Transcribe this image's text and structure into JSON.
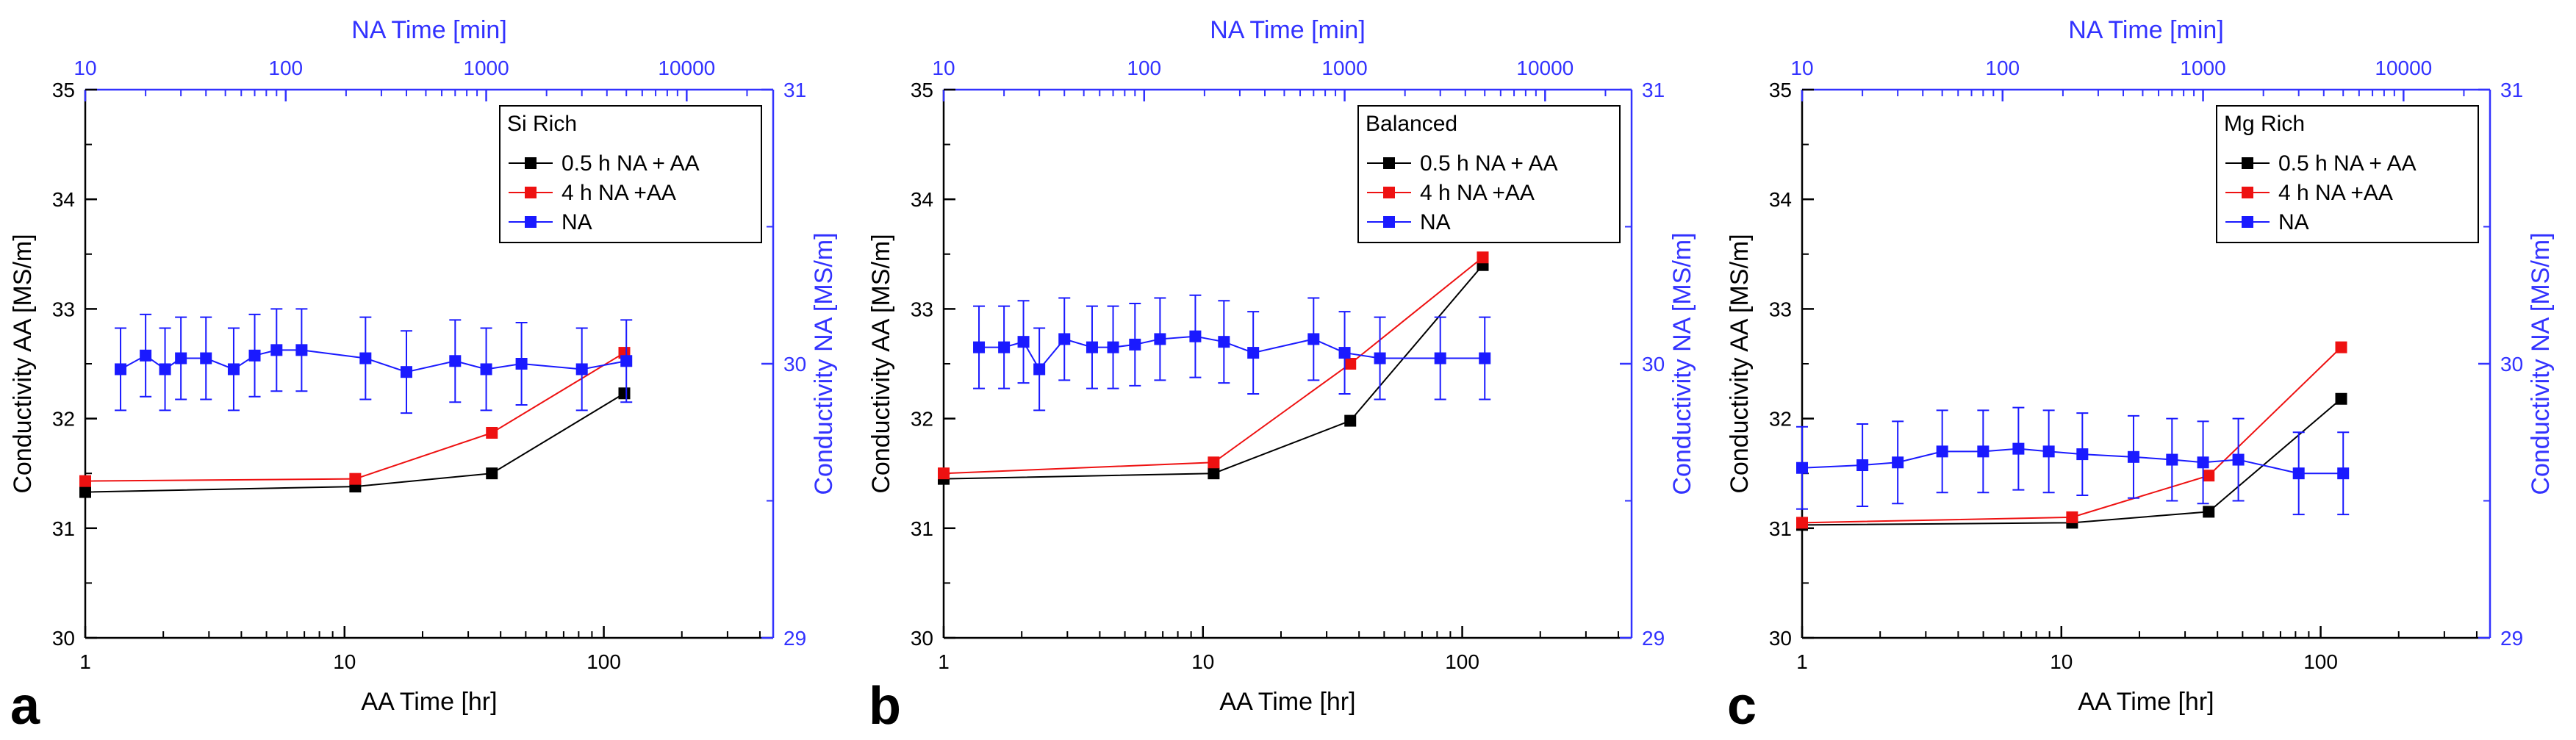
{
  "colors": {
    "axis": "#000000",
    "na_axis": "#3232ff",
    "series_black": "#000000",
    "series_red": "#ee1111",
    "series_blue": "#1a1aff"
  },
  "chart_data": [
    {
      "type": "line",
      "panel_label": "a",
      "legend_title": "Si Rich",
      "xlabel": "AA Time [hr]",
      "x2label": "NA Time [min]",
      "ylabel": "Conductivity AA [MS/m]",
      "y2label": "Conductivity NA [MS/m]",
      "xscale": "log",
      "xlim": [
        1,
        450
      ],
      "x2scale": "log",
      "x2lim": [
        10,
        27000
      ],
      "ylim": [
        30,
        35
      ],
      "y2lim": [
        29,
        31
      ],
      "xticks": [
        "1",
        "10",
        "100"
      ],
      "x2ticks": [
        "10",
        "100",
        "1000",
        "10000"
      ],
      "yticks": [
        "30",
        "31",
        "32",
        "33",
        "34",
        "35"
      ],
      "y2ticks": [
        "29",
        "30",
        "31"
      ],
      "legend_position": "top-right",
      "series": [
        {
          "name": "0.5 h NA + AA",
          "axis": "AA",
          "color": "#000000",
          "x": [
            1,
            11,
            37,
            120
          ],
          "y": [
            31.33,
            31.38,
            31.5,
            32.23
          ]
        },
        {
          "name": "4 h NA +AA",
          "axis": "AA",
          "color": "#ee1111",
          "x": [
            1,
            11,
            37,
            120
          ],
          "y": [
            31.43,
            31.45,
            31.87,
            32.6
          ]
        },
        {
          "name": "NA",
          "axis": "NA",
          "color": "#1a1aff",
          "x": [
            15,
            20,
            25,
            30,
            40,
            55,
            70,
            90,
            120,
            250,
            400,
            700,
            1000,
            1500,
            3000,
            5000
          ],
          "y": [
            29.98,
            30.03,
            29.98,
            30.02,
            30.02,
            29.98,
            30.03,
            30.05,
            30.05,
            30.02,
            29.97,
            30.01,
            29.98,
            30.0,
            29.98,
            30.01
          ],
          "err": 0.15
        }
      ]
    },
    {
      "type": "line",
      "panel_label": "b",
      "legend_title": "Balanced",
      "xlabel": "AA Time [hr]",
      "x2label": "NA Time [min]",
      "ylabel": "Conductivity AA [MS/m]",
      "y2label": "Conductivity NA [MS/m]",
      "xscale": "log",
      "xlim": [
        1,
        450
      ],
      "x2scale": "log",
      "x2lim": [
        10,
        27000
      ],
      "ylim": [
        30,
        35
      ],
      "y2lim": [
        29,
        31
      ],
      "xticks": [
        "1",
        "10",
        "100"
      ],
      "x2ticks": [
        "10",
        "100",
        "1000",
        "10000"
      ],
      "yticks": [
        "30",
        "31",
        "32",
        "33",
        "34",
        "35"
      ],
      "y2ticks": [
        "29",
        "30",
        "31"
      ],
      "legend_position": "top-right",
      "series": [
        {
          "name": "0.5 h NA + AA",
          "axis": "AA",
          "color": "#000000",
          "x": [
            1,
            11,
            37,
            120
          ],
          "y": [
            31.45,
            31.5,
            31.98,
            33.4
          ]
        },
        {
          "name": "4 h NA +AA",
          "axis": "AA",
          "color": "#ee1111",
          "x": [
            1,
            11,
            37,
            120
          ],
          "y": [
            31.5,
            31.6,
            32.5,
            33.47
          ]
        },
        {
          "name": "NA",
          "axis": "NA",
          "color": "#1a1aff",
          "x": [
            15,
            20,
            25,
            30,
            40,
            55,
            70,
            90,
            120,
            180,
            250,
            350,
            700,
            1000,
            1500,
            3000,
            5000
          ],
          "y": [
            30.06,
            30.06,
            30.08,
            29.98,
            30.09,
            30.06,
            30.06,
            30.07,
            30.09,
            30.1,
            30.08,
            30.04,
            30.09,
            30.04,
            30.02,
            30.02,
            30.02
          ],
          "err": 0.15
        }
      ]
    },
    {
      "type": "line",
      "panel_label": "c",
      "legend_title": "Mg Rich",
      "xlabel": "AA Time [hr]",
      "x2label": "NA Time [min]",
      "ylabel": "Conductivity AA [MS/m]",
      "y2label": "Conductivity NA [MS/m]",
      "xscale": "log",
      "xlim": [
        1,
        450
      ],
      "x2scale": "log",
      "x2lim": [
        10,
        27000
      ],
      "ylim": [
        30,
        35
      ],
      "y2lim": [
        29,
        31
      ],
      "xticks": [
        "1",
        "10",
        "100"
      ],
      "x2ticks": [
        "10",
        "100",
        "1000",
        "10000"
      ],
      "yticks": [
        "30",
        "31",
        "32",
        "33",
        "34",
        "35"
      ],
      "y2ticks": [
        "29",
        "30",
        "31"
      ],
      "legend_position": "top-right",
      "series": [
        {
          "name": "0.5 h NA + AA",
          "axis": "AA",
          "color": "#000000",
          "x": [
            1,
            11,
            37,
            120
          ],
          "y": [
            31.03,
            31.05,
            31.15,
            32.18
          ]
        },
        {
          "name": "4 h NA +AA",
          "axis": "AA",
          "color": "#ee1111",
          "x": [
            1,
            11,
            37,
            120
          ],
          "y": [
            31.05,
            31.1,
            31.48,
            32.65
          ]
        },
        {
          "name": "NA",
          "axis": "NA",
          "color": "#1a1aff",
          "x": [
            10,
            20,
            30,
            50,
            80,
            120,
            170,
            250,
            450,
            700,
            1000,
            1500,
            3000,
            5000
          ],
          "y": [
            29.62,
            29.63,
            29.64,
            29.68,
            29.68,
            29.69,
            29.68,
            29.67,
            29.66,
            29.65,
            29.64,
            29.65,
            29.6,
            29.6
          ],
          "err": 0.15
        }
      ]
    }
  ]
}
